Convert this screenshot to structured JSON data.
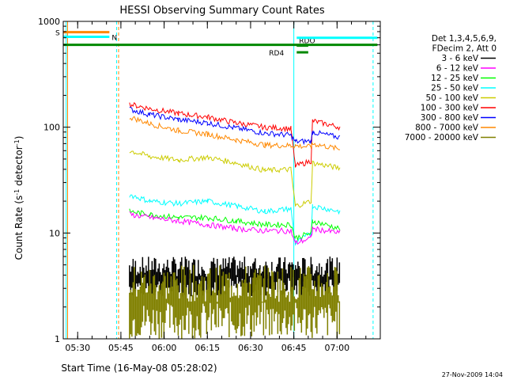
{
  "chart_data": {
    "type": "line",
    "title": "HESSI Observing Summary Count Rates",
    "xlabel": "Start Time (16-May-08 05:28:02)",
    "ylabel_main": "Count Rate (s",
    "ylabel_sup1": "-1",
    "ylabel_mid": " detector",
    "ylabel_sup2": "-1",
    "ylabel_end": ")",
    "y_scale": "log",
    "ylim": [
      1,
      1000
    ],
    "xlim_min": [
      325,
      435
    ],
    "x_ticks": [
      {
        "min": 330,
        "label": "05:30"
      },
      {
        "min": 345,
        "label": "05:45"
      },
      {
        "min": 360,
        "label": "06:00"
      },
      {
        "min": 375,
        "label": "06:15"
      },
      {
        "min": 390,
        "label": "06:30"
      },
      {
        "min": 405,
        "label": "06:45"
      },
      {
        "min": 420,
        "label": "07:00"
      }
    ],
    "y_ticks": [
      {
        "value": 1,
        "label": "1"
      },
      {
        "value": 10,
        "label": "10"
      },
      {
        "value": 100,
        "label": "100"
      },
      {
        "value": 1000,
        "label": "1000"
      }
    ],
    "legend_header": [
      "Det 1,3,4,5,6,9,",
      "FDecim 2, Att 0"
    ],
    "legend_position": "right",
    "series": [
      {
        "name": "3 - 6 keV",
        "color": "#000000"
      },
      {
        "name": "6 - 12 keV",
        "color": "#ff00ff"
      },
      {
        "name": "12 - 25 keV",
        "color": "#00ff00"
      },
      {
        "name": "25 - 50 keV",
        "color": "#00ffff"
      },
      {
        "name": "50 - 100 keV",
        "color": "#cccc00"
      },
      {
        "name": "100 - 300 keV",
        "color": "#ff0000"
      },
      {
        "name": "300 - 800 keV",
        "color": "#0000ff"
      },
      {
        "name": "800 - 7000 keV",
        "color": "#ff8800"
      },
      {
        "name": "7000 - 20000 keV",
        "color": "#808000"
      }
    ],
    "series_points": [
      {
        "x": [
          348,
          355,
          365,
          375,
          385,
          395,
          404,
          405.5,
          411,
          411.5,
          421
        ],
        "y": [
          165,
          150,
          135,
          125,
          110,
          100,
          97,
          43,
          48,
          115,
          100
        ]
      },
      {
        "x": [
          348,
          355,
          365,
          375,
          385,
          395,
          404,
          405.5,
          411,
          411.5,
          421
        ],
        "y": [
          148,
          132,
          118,
          110,
          98,
          88,
          84,
          73,
          74,
          90,
          80
        ]
      },
      {
        "x": [
          348,
          355,
          365,
          375,
          385,
          395,
          404,
          405.5,
          411,
          411.5,
          421
        ],
        "y": [
          125,
          108,
          93,
          86,
          76,
          68,
          67,
          67,
          65,
          70,
          62
        ]
      },
      {
        "x": [
          348,
          355,
          365,
          375,
          385,
          395,
          404,
          405.5,
          411,
          411.5,
          421
        ],
        "y": [
          60,
          53,
          49,
          52,
          46,
          39,
          40,
          18,
          20,
          46,
          41
        ]
      },
      {
        "x": [
          348,
          355,
          365,
          375,
          385,
          395,
          404,
          405.5,
          411,
          411.5,
          421
        ],
        "y": [
          23,
          20,
          19,
          20,
          18,
          16,
          17,
          8,
          10,
          18,
          16
        ]
      },
      {
        "x": [
          348,
          355,
          365,
          375,
          385,
          395,
          404,
          405.5,
          411,
          411.5,
          421
        ],
        "y": [
          16,
          15,
          14,
          14,
          13,
          12,
          12,
          9,
          10,
          13,
          11
        ]
      },
      {
        "x": [
          348,
          355,
          365,
          375,
          385,
          395,
          404,
          405.5,
          411,
          411.5,
          421
        ],
        "y": [
          15,
          14,
          13,
          12,
          11,
          10.5,
          10.5,
          8,
          9,
          11,
          10
        ]
      }
    ],
    "series_points_map": [
      5,
      6,
      7,
      4,
      3,
      2,
      1
    ],
    "noise_bands": [
      {
        "series": 0,
        "x": [
          348,
          421
        ],
        "ymin": 2.5,
        "ymax": 6
      },
      {
        "series": 8,
        "x": [
          348,
          421
        ],
        "ymin": 1,
        "ymax": 5
      }
    ],
    "state_flags": [
      {
        "label": "S",
        "color": "#ff8800",
        "x": [
          325,
          341
        ],
        "y": 790
      },
      {
        "label": "N",
        "color": "#00ffff",
        "x": [
          325,
          341
        ],
        "y": 715
      },
      {
        "label": "",
        "color": "#008800",
        "x": [
          325,
          434
        ],
        "y": 600
      },
      {
        "label": "RD4",
        "color": "#008800",
        "x": [
          406,
          410
        ],
        "y": 510
      },
      {
        "label": "RDO",
        "color": "#008800",
        "x": [
          406,
          410
        ],
        "y": 590
      },
      {
        "label": "",
        "color": "#00ffff",
        "x": [
          406,
          434
        ],
        "y": 700
      }
    ],
    "vlines": [
      {
        "min": 326,
        "color": "#00ffff",
        "dashed": false
      },
      {
        "min": 326.5,
        "color": "#ff8800",
        "dashed": false
      },
      {
        "min": 343.5,
        "color": "#00ffff",
        "dashed": true
      },
      {
        "min": 344.2,
        "color": "#ff8800",
        "dashed": true
      },
      {
        "min": 405,
        "color": "#00ffff",
        "dashed": false
      },
      {
        "min": 432.5,
        "color": "#00ffff",
        "dashed": true
      }
    ]
  },
  "footer_date": "27-Nov-2009 14:04"
}
